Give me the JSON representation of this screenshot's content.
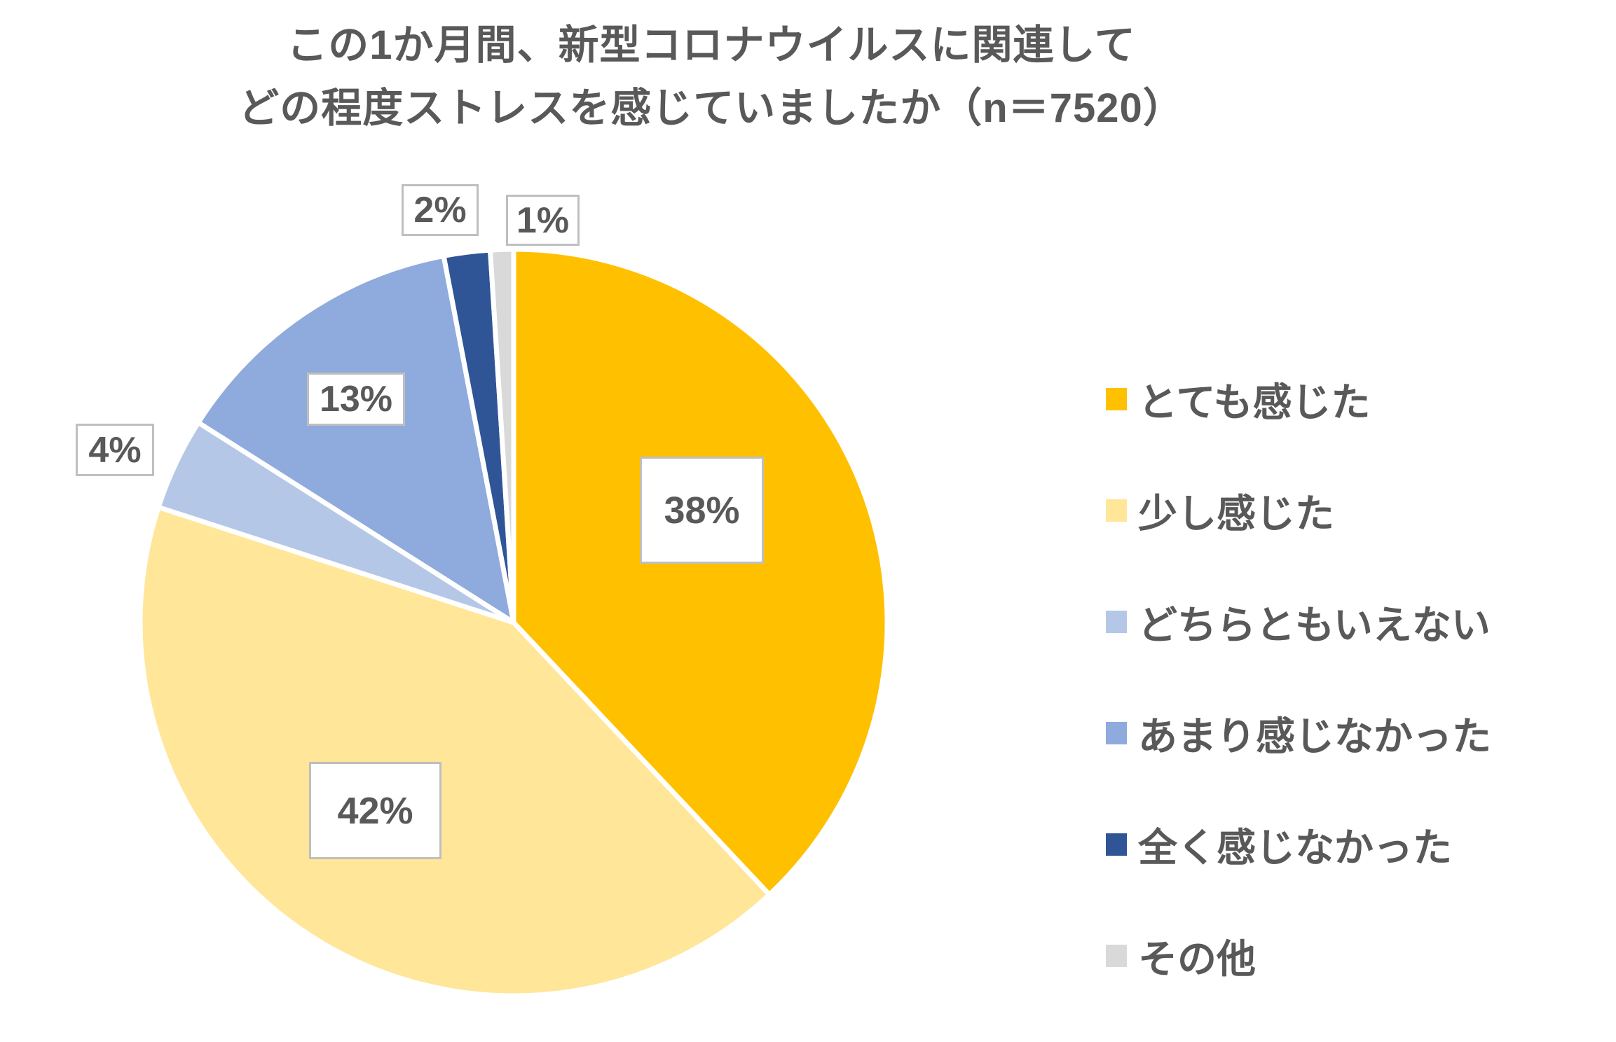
{
  "title": {
    "line1": "この1か月間、新型コロナウイルスに関連して",
    "line2": "どの程度ストレスを感じていましたか（n＝7520）"
  },
  "chart_data": {
    "type": "pie",
    "title": "この1か月間、新型コロナウイルスに関連してどの程度ストレスを感じていましたか（n＝7520）",
    "n": 7520,
    "start_angle_deg": 0,
    "direction": "clockwise",
    "legend_position": "right",
    "slices": [
      {
        "label": "とても感じた",
        "value_pct": 38,
        "data_label": "38%",
        "color": "#FFC000",
        "label_placement": "inside"
      },
      {
        "label": "少し感じた",
        "value_pct": 42,
        "data_label": "42%",
        "color": "#FFE699",
        "label_placement": "inside"
      },
      {
        "label": "どちらともいえない",
        "value_pct": 4,
        "data_label": "4%",
        "color": "#B4C7E7",
        "label_placement": "outside"
      },
      {
        "label": "あまり感じなかった",
        "value_pct": 13,
        "data_label": "13%",
        "color": "#8FAADC",
        "label_placement": "inside"
      },
      {
        "label": "全く感じなかった",
        "value_pct": 2,
        "data_label": "2%",
        "color": "#2F5597",
        "label_placement": "outside"
      },
      {
        "label": "その他",
        "value_pct": 1,
        "data_label": "1%",
        "color": "#D9D9D9",
        "label_placement": "outside"
      }
    ],
    "colors": {
      "text": "#595959",
      "slice_border": "#FFFFFF",
      "label_box_border": "#BFBFBF",
      "label_box_fill": "#FFFFFF"
    }
  }
}
